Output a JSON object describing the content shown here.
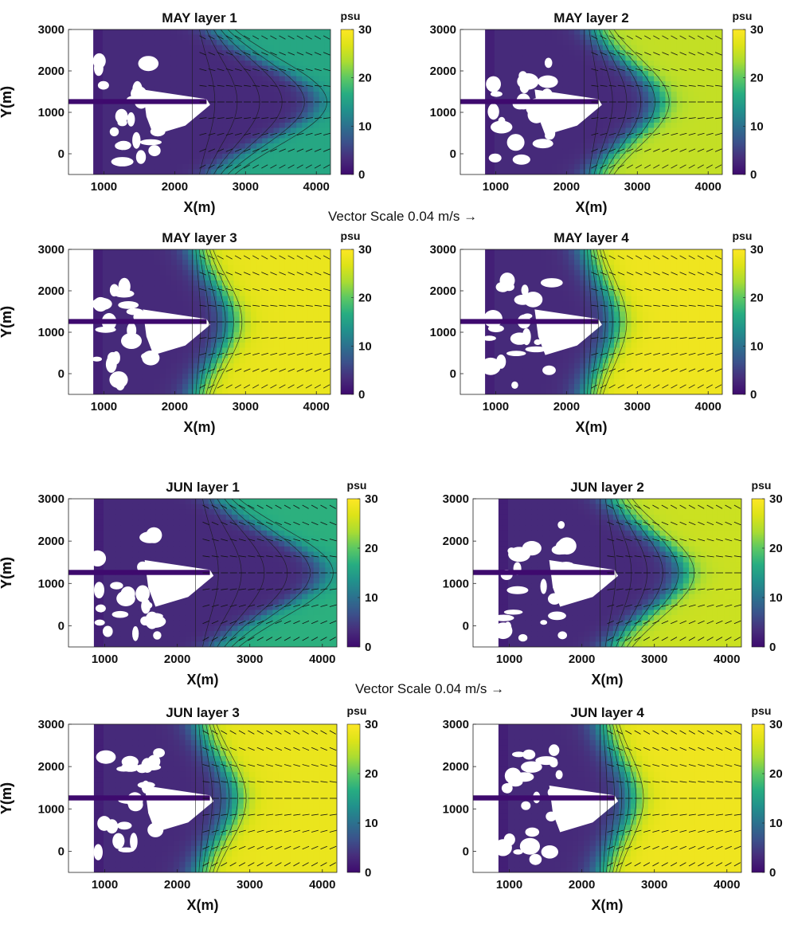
{
  "figure": {
    "vector_scale_label": "Vector Scale 0.04 m/s",
    "vector_scale_arrow": "→"
  },
  "colors": {
    "colormap": [
      "#3e0a6e",
      "#472d7b",
      "#3b518b",
      "#2c718e",
      "#21918c",
      "#27ad81",
      "#5cc863",
      "#aadc32",
      "#dde318",
      "#fde725"
    ],
    "land": "#ffffff",
    "contour": "#1a1a1a",
    "arrow": "#111111"
  },
  "chart_data": [
    {
      "type": "heatmap",
      "title": "MAY layer 1",
      "xlabel": "X(m)",
      "ylabel": "Y(m)",
      "xticks": [
        "1000",
        "2000",
        "3000",
        "4000"
      ],
      "yticks": [
        "0",
        "1000",
        "2000",
        "3000"
      ],
      "colorbar": {
        "label": "psu",
        "ticks": [
          "0",
          "10",
          "20",
          "30"
        ],
        "range": [
          0,
          30
        ]
      },
      "xlim": [
        500,
        4200
      ],
      "ylim": [
        -500,
        3000
      ],
      "offshore_salinity": 16,
      "plume_extent_x": 4000
    },
    {
      "type": "heatmap",
      "title": "MAY layer 2",
      "xlabel": "X(m)",
      "ylabel": "Y(m)",
      "xticks": [
        "1000",
        "2000",
        "3000",
        "4000"
      ],
      "yticks": [
        "0",
        "1000",
        "2000",
        "3000"
      ],
      "colorbar": {
        "label": "psu",
        "ticks": [
          "0",
          "10",
          "20",
          "30"
        ],
        "range": [
          0,
          30
        ]
      },
      "xlim": [
        500,
        4200
      ],
      "ylim": [
        -500,
        3000
      ],
      "offshore_salinity": 25,
      "plume_extent_x": 3300
    },
    {
      "type": "heatmap",
      "title": "MAY layer 3",
      "xlabel": "X(m)",
      "ylabel": "Y(m)",
      "xticks": [
        "1000",
        "2000",
        "3000",
        "4000"
      ],
      "yticks": [
        "0",
        "1000",
        "2000",
        "3000"
      ],
      "colorbar": {
        "label": "psu",
        "ticks": [
          "0",
          "10",
          "20",
          "30"
        ],
        "range": [
          0,
          30
        ]
      },
      "xlim": [
        500,
        4200
      ],
      "ylim": [
        -500,
        3000
      ],
      "offshore_salinity": 28,
      "plume_extent_x": 2800
    },
    {
      "type": "heatmap",
      "title": "MAY layer 4",
      "xlabel": "X(m)",
      "ylabel": "Y(m)",
      "xticks": [
        "1000",
        "2000",
        "3000",
        "4000"
      ],
      "yticks": [
        "0",
        "1000",
        "2000",
        "3000"
      ],
      "colorbar": {
        "label": "psu",
        "ticks": [
          "0",
          "10",
          "20",
          "30"
        ],
        "range": [
          0,
          30
        ]
      },
      "xlim": [
        500,
        4200
      ],
      "ylim": [
        -500,
        3000
      ],
      "offshore_salinity": 28.5,
      "plume_extent_x": 2700
    },
    {
      "type": "heatmap",
      "title": "JUN layer 1",
      "xlabel": "X(m)",
      "ylabel": "Y(m)",
      "xticks": [
        "1000",
        "2000",
        "3000",
        "4000"
      ],
      "yticks": [
        "0",
        "1000",
        "2000",
        "3000"
      ],
      "colorbar": {
        "label": "psu",
        "ticks": [
          "0",
          "10",
          "20",
          "30"
        ],
        "range": [
          0,
          30
        ]
      },
      "xlim": [
        500,
        4200
      ],
      "ylim": [
        -500,
        3000
      ],
      "offshore_salinity": 17,
      "plume_extent_x": 4000
    },
    {
      "type": "heatmap",
      "title": "JUN layer 2",
      "xlabel": "X(m)",
      "ylabel": "Y(m)",
      "xticks": [
        "1000",
        "2000",
        "3000",
        "4000"
      ],
      "yticks": [
        "0",
        "1000",
        "2000",
        "3000"
      ],
      "colorbar": {
        "label": "psu",
        "ticks": [
          "0",
          "10",
          "20",
          "30"
        ],
        "range": [
          0,
          30
        ]
      },
      "xlim": [
        500,
        4200
      ],
      "ylim": [
        -500,
        3000
      ],
      "offshore_salinity": 25.5,
      "plume_extent_x": 3400
    },
    {
      "type": "heatmap",
      "title": "JUN layer 3",
      "xlabel": "X(m)",
      "ylabel": "Y(m)",
      "xticks": [
        "1000",
        "2000",
        "3000",
        "4000"
      ],
      "yticks": [
        "0",
        "1000",
        "2000",
        "3000"
      ],
      "colorbar": {
        "label": "psu",
        "ticks": [
          "0",
          "10",
          "20",
          "30"
        ],
        "range": [
          0,
          30
        ]
      },
      "xlim": [
        500,
        4200
      ],
      "ylim": [
        -500,
        3000
      ],
      "offshore_salinity": 28,
      "plume_extent_x": 2800
    },
    {
      "type": "heatmap",
      "title": "JUN layer 4",
      "xlabel": "X(m)",
      "ylabel": "Y(m)",
      "xticks": [
        "1000",
        "2000",
        "3000",
        "4000"
      ],
      "yticks": [
        "0",
        "1000",
        "2000",
        "3000"
      ],
      "colorbar": {
        "label": "psu",
        "ticks": [
          "0",
          "10",
          "20",
          "30"
        ],
        "range": [
          0,
          30
        ]
      },
      "xlim": [
        500,
        4200
      ],
      "ylim": [
        -500,
        3000
      ],
      "offshore_salinity": 28.5,
      "plume_extent_x": 2700
    }
  ]
}
